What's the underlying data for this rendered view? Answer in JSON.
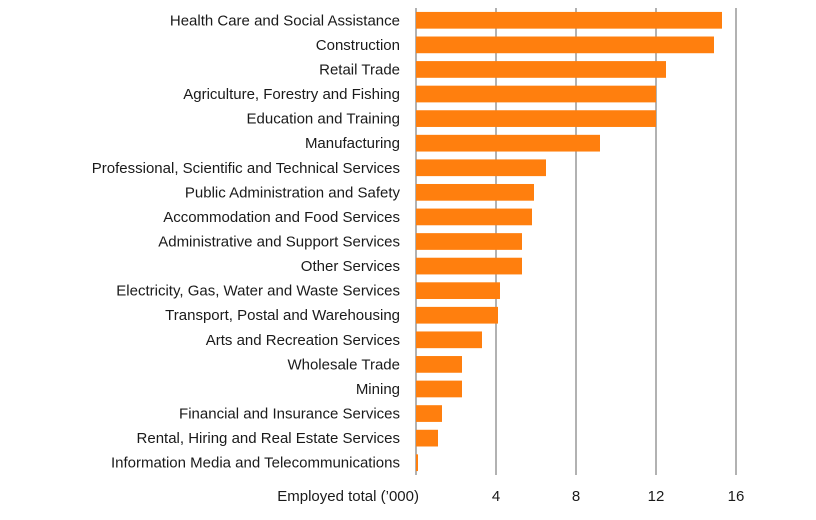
{
  "chart_data": {
    "type": "bar",
    "orientation": "horizontal",
    "categories": [
      "Health Care and Social Assistance",
      "Construction",
      "Retail Trade",
      "Agriculture, Forestry and Fishing",
      "Education and Training",
      "Manufacturing",
      "Professional, Scientific and Technical Services",
      "Public Administration and Safety",
      "Accommodation and Food Services",
      "Administrative and Support Services",
      "Other Services",
      "Electricity, Gas, Water and Waste Services",
      "Transport, Postal and Warehousing",
      "Arts and Recreation Services",
      "Wholesale Trade",
      "Mining",
      "Financial and Insurance Services",
      "Rental, Hiring and Real Estate Services",
      "Information Media and Telecommunications"
    ],
    "values": [
      15.3,
      14.9,
      12.5,
      12.0,
      12.0,
      9.2,
      6.5,
      5.9,
      5.8,
      5.3,
      5.3,
      4.2,
      4.1,
      3.3,
      2.3,
      2.3,
      1.3,
      1.1,
      0.1
    ],
    "xlabel": "Employed total (’000)",
    "xlim": [
      0,
      16
    ],
    "xticks": [
      4,
      8,
      12,
      16
    ],
    "xtick_labels": [
      "4",
      "8",
      "12",
      "16"
    ],
    "grid": "vertical",
    "bar_color": "#ff7f0e"
  }
}
